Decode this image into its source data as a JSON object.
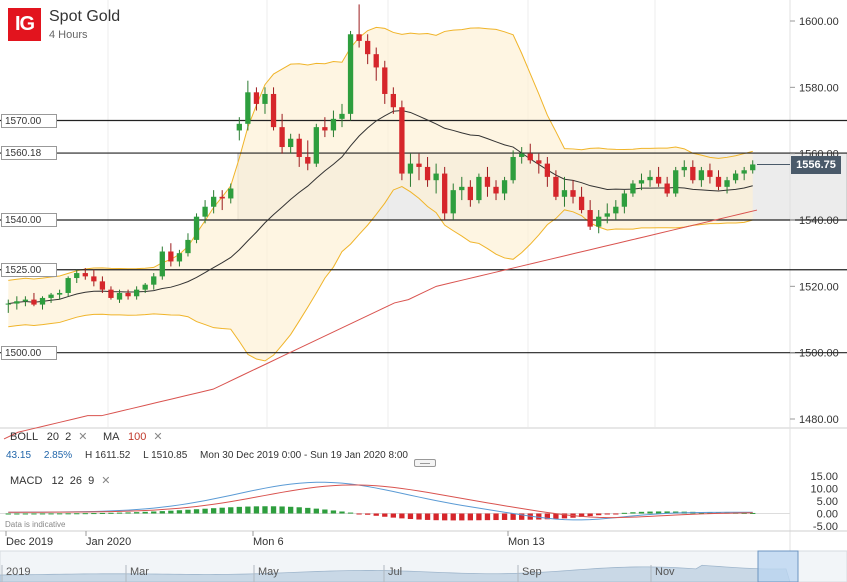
{
  "header": {
    "logo": "IG",
    "title": "Spot Gold",
    "subtitle": "4 Hours"
  },
  "indicators": {
    "boll": {
      "name": "BOLL",
      "p1": "20",
      "p2": "2"
    },
    "ma": {
      "name": "MA",
      "p1": "100"
    },
    "stats": {
      "change": "43.15",
      "pct": "2.85%",
      "high": "H 1611.52",
      "low": "L 1510.85",
      "range": "Mon 30 Dec 2019 0:00 - Sun 19 Jan 2020 8:00"
    },
    "macd": {
      "name": "MACD",
      "p1": "12",
      "p2": "26",
      "p3": "9"
    }
  },
  "disclaimer": "Data is indicative",
  "close_icon": "close-icon",
  "colors": {
    "up": "#2e9e3e",
    "down": "#d6262b",
    "boll": "#f0b429",
    "ma": "#333333",
    "ma100": "#d9534f",
    "macd": "#5b9bd5",
    "signal": "#d9534f",
    "zone": "#dcdcdc"
  },
  "chart_data": {
    "type": "candlestick",
    "title": "Spot Gold",
    "subtitle": "4 Hours",
    "y_ticks": [
      "1600.00",
      "1580.00",
      "1560.00",
      "1540.00",
      "1520.00",
      "1500.00",
      "1480.00"
    ],
    "y_range": [
      1474,
      1606
    ],
    "x_ticks": [
      "Dec 2019",
      "Jan 2020",
      "Mon 6",
      "Mon 13"
    ],
    "current_price": "1556.75",
    "horizontal_levels": [
      {
        "label": "1570.00",
        "value": 1570
      },
      {
        "label": "1560.18",
        "value": 1560.18
      },
      {
        "label": "1540.00",
        "value": 1540
      },
      {
        "label": "1525.00",
        "value": 1525
      },
      {
        "label": "1500.00",
        "value": 1500
      }
    ],
    "zone": [
      1540,
      1560.18
    ],
    "candles": [
      [
        1514.5,
        1516,
        1512,
        1514.8
      ],
      [
        1514.8,
        1517,
        1513,
        1515.5
      ],
      [
        1515.5,
        1517,
        1514,
        1516
      ],
      [
        1516,
        1518,
        1514,
        1514.5
      ],
      [
        1514.5,
        1517,
        1513,
        1516.5
      ],
      [
        1516.5,
        1518,
        1515,
        1517.5
      ],
      [
        1517.5,
        1519,
        1516,
        1518
      ],
      [
        1518,
        1523,
        1517,
        1522.5
      ],
      [
        1522.5,
        1525,
        1521,
        1524
      ],
      [
        1524,
        1525.5,
        1522,
        1523
      ],
      [
        1523,
        1525,
        1520,
        1521.5
      ],
      [
        1521.5,
        1523,
        1518,
        1519
      ],
      [
        1519,
        1520,
        1516,
        1516.5
      ],
      [
        1516,
        1519,
        1515,
        1518
      ],
      [
        1518,
        1519,
        1516,
        1517
      ],
      [
        1517,
        1520,
        1516,
        1519
      ],
      [
        1519,
        1521,
        1518,
        1520.5
      ],
      [
        1520.5,
        1524,
        1519,
        1523
      ],
      [
        1523,
        1532,
        1522,
        1530.5
      ],
      [
        1530.5,
        1533,
        1526,
        1527.5
      ],
      [
        1527.5,
        1531,
        1526,
        1530
      ],
      [
        1530,
        1536,
        1529,
        1534
      ],
      [
        1534,
        1542,
        1533,
        1541
      ],
      [
        1541,
        1546,
        1539,
        1544
      ],
      [
        1544,
        1549,
        1542,
        1547
      ],
      [
        1547,
        1549,
        1543,
        1546.5
      ],
      [
        1546.5,
        1551,
        1545,
        1549.5
      ],
      [
        1567,
        1571,
        1564,
        1569
      ],
      [
        1569,
        1582,
        1567,
        1578.5
      ],
      [
        1578.5,
        1580,
        1573,
        1575
      ],
      [
        1575,
        1580,
        1572,
        1578
      ],
      [
        1578,
        1580,
        1567,
        1568
      ],
      [
        1568,
        1572,
        1560,
        1562
      ],
      [
        1562,
        1566,
        1560,
        1564.5
      ],
      [
        1564.5,
        1566,
        1556,
        1559
      ],
      [
        1559,
        1564,
        1555,
        1557
      ],
      [
        1557,
        1569,
        1556,
        1568
      ],
      [
        1568,
        1571,
        1565,
        1567
      ],
      [
        1567,
        1573,
        1565,
        1570.5
      ],
      [
        1570.5,
        1575,
        1568,
        1572
      ],
      [
        1572,
        1597,
        1570,
        1596
      ],
      [
        1596,
        1605,
        1592,
        1594
      ],
      [
        1594,
        1596,
        1587,
        1590
      ],
      [
        1590,
        1592,
        1582,
        1586
      ],
      [
        1586,
        1588,
        1575,
        1578
      ],
      [
        1578,
        1580,
        1572,
        1574
      ],
      [
        1574,
        1576,
        1552,
        1554
      ],
      [
        1554,
        1560,
        1550,
        1557
      ],
      [
        1557,
        1560,
        1552,
        1556
      ],
      [
        1556,
        1559,
        1550,
        1552
      ],
      [
        1552,
        1557,
        1548,
        1554
      ],
      [
        1554,
        1556,
        1540,
        1542
      ],
      [
        1542,
        1551,
        1540,
        1549
      ],
      [
        1549,
        1553,
        1546,
        1550
      ],
      [
        1550,
        1552,
        1544,
        1546
      ],
      [
        1546,
        1554,
        1545,
        1553
      ],
      [
        1553,
        1556,
        1547,
        1550
      ],
      [
        1550,
        1552,
        1546,
        1548
      ],
      [
        1548,
        1553,
        1546,
        1552
      ],
      [
        1552,
        1561,
        1551,
        1559
      ],
      [
        1559,
        1562,
        1557,
        1560
      ],
      [
        1560,
        1563,
        1557,
        1558
      ],
      [
        1558,
        1560,
        1554,
        1557
      ],
      [
        1557,
        1559,
        1550,
        1553
      ],
      [
        1553,
        1555,
        1546,
        1547
      ],
      [
        1547,
        1553,
        1544,
        1549
      ],
      [
        1549,
        1552,
        1545,
        1547
      ],
      [
        1547,
        1550,
        1542,
        1543
      ],
      [
        1543,
        1546,
        1537,
        1538
      ],
      [
        1538,
        1543,
        1536,
        1541
      ],
      [
        1541,
        1545,
        1539,
        1542
      ],
      [
        1542,
        1546,
        1540,
        1544
      ],
      [
        1544,
        1549,
        1542,
        1548
      ],
      [
        1548,
        1552,
        1547,
        1551
      ],
      [
        1551,
        1554,
        1549,
        1552
      ],
      [
        1552,
        1555,
        1550,
        1553
      ],
      [
        1553,
        1556,
        1550,
        1551
      ],
      [
        1551,
        1553,
        1547,
        1548
      ],
      [
        1548,
        1556,
        1547,
        1555
      ],
      [
        1555,
        1558,
        1553,
        1556
      ],
      [
        1556,
        1558,
        1551,
        1552
      ],
      [
        1552,
        1556,
        1550,
        1555
      ],
      [
        1555,
        1557,
        1551,
        1553
      ],
      [
        1553,
        1555,
        1549,
        1550
      ],
      [
        1550,
        1553,
        1548,
        1552
      ],
      [
        1552,
        1555,
        1551,
        1554
      ],
      [
        1554,
        1556,
        1552,
        1555
      ],
      [
        1555,
        1558,
        1554,
        1556.75
      ]
    ],
    "series": [
      {
        "name": "MA",
        "values": [
          1504,
          1507,
          1509,
          1511,
          1512,
          1513,
          1514,
          1515,
          1516,
          1517,
          1517,
          1517,
          1517,
          1517,
          1517,
          1517,
          1518,
          1518,
          1519,
          1520,
          1521,
          1523,
          1526,
          1529,
          1532,
          1535,
          1538,
          1541,
          1544,
          1548,
          1552,
          1555,
          1557,
          1559,
          1561,
          1564,
          1568,
          1570,
          1571,
          1571,
          1570,
          1568,
          1566,
          1563,
          1561,
          1559,
          1557,
          1555,
          1554,
          1553,
          1552,
          1552,
          1552,
          1552,
          1552,
          1552,
          1552,
          1551,
          1551,
          1550,
          1550,
          1550,
          1550,
          1550,
          1550,
          1550,
          1550,
          1551,
          1551,
          1551,
          1551,
          1550,
          1550,
          1550,
          1551,
          1552
        ],
        "note": ""
      },
      {
        "name": "MA 100",
        "values": [
          1474,
          1476,
          1477,
          1478,
          1479,
          1480,
          1481,
          1481,
          1482,
          1483,
          1484,
          1485,
          1486,
          1487,
          1488,
          1489,
          1491,
          1493,
          1495,
          1497,
          1499,
          1501,
          1503,
          1505,
          1507,
          1509,
          1511,
          1513,
          1515,
          1516,
          1518,
          1520,
          1521,
          1522,
          1523,
          1524,
          1525,
          1526,
          1527,
          1528,
          1529,
          1530,
          1531,
          1532,
          1533,
          1534,
          1535,
          1536,
          1537,
          1538,
          1539,
          1540,
          1541,
          1542,
          1543
        ]
      }
    ],
    "macd_axis_ticks": [
      "15.00",
      "10.00",
      "5.00",
      "0.00",
      "-5.00"
    ]
  }
}
